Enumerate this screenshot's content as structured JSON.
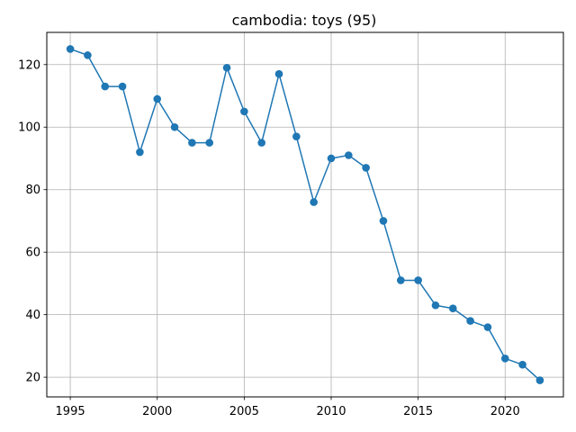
{
  "chart_data": {
    "type": "line",
    "title": "cambodia: toys (95)",
    "xlabel": "",
    "ylabel": "",
    "xlim": [
      1993.65,
      2023.35
    ],
    "ylim": [
      13.7,
      130.3
    ],
    "x_ticks": [
      1995,
      2000,
      2005,
      2010,
      2015,
      2020
    ],
    "y_ticks": [
      20,
      40,
      60,
      80,
      100,
      120
    ],
    "grid": true,
    "series": [
      {
        "color": "#1f77b4",
        "marker": "circle",
        "points": [
          {
            "x": 1995,
            "y": 125
          },
          {
            "x": 1996,
            "y": 123
          },
          {
            "x": 1997,
            "y": 113
          },
          {
            "x": 1998,
            "y": 113
          },
          {
            "x": 1999,
            "y": 92
          },
          {
            "x": 2000,
            "y": 109
          },
          {
            "x": 2001,
            "y": 100
          },
          {
            "x": 2002,
            "y": 95
          },
          {
            "x": 2003,
            "y": 95
          },
          {
            "x": 2004,
            "y": 119
          },
          {
            "x": 2005,
            "y": 105
          },
          {
            "x": 2006,
            "y": 95
          },
          {
            "x": 2007,
            "y": 117
          },
          {
            "x": 2008,
            "y": 97
          },
          {
            "x": 2009,
            "y": 76
          },
          {
            "x": 2010,
            "y": 90
          },
          {
            "x": 2011,
            "y": 91
          },
          {
            "x": 2012,
            "y": 87
          },
          {
            "x": 2013,
            "y": 70
          },
          {
            "x": 2014,
            "y": 51
          },
          {
            "x": 2015,
            "y": 51
          },
          {
            "x": 2016,
            "y": 43
          },
          {
            "x": 2017,
            "y": 42
          },
          {
            "x": 2018,
            "y": 38
          },
          {
            "x": 2019,
            "y": 36
          },
          {
            "x": 2020,
            "y": 26
          },
          {
            "x": 2021,
            "y": 24
          },
          {
            "x": 2022,
            "y": 19
          }
        ]
      }
    ]
  }
}
